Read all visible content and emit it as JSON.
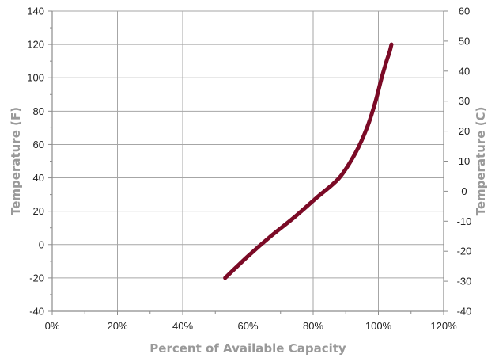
{
  "chart_data": {
    "type": "line",
    "xlabel": "Percent of Available Capacity",
    "ylabel": "Temperature (F)",
    "y2label": "Temperature (C)",
    "xlim": [
      0,
      120
    ],
    "ylim": [
      -40,
      140
    ],
    "y2lim": [
      -40,
      60
    ],
    "x_ticks": [
      0,
      20,
      40,
      60,
      80,
      100,
      120
    ],
    "x_tick_labels": [
      "0%",
      "20%",
      "40%",
      "60%",
      "80%",
      "100%",
      "120%"
    ],
    "y_ticks": [
      -40,
      -20,
      0,
      20,
      40,
      60,
      80,
      100,
      120,
      140
    ],
    "y_tick_labels": [
      "-40",
      "-20",
      "0",
      "20",
      "40",
      "60",
      "80",
      "100",
      "120",
      "140"
    ],
    "y2_ticks": [
      -40,
      -30,
      -20,
      -10,
      0,
      10,
      20,
      30,
      40,
      50,
      60
    ],
    "y2_tick_labels": [
      "-40",
      "-30",
      "-20",
      "-10",
      "0",
      "10",
      "20",
      "30",
      "40",
      "50",
      "60"
    ],
    "grid": true,
    "line_color": "#7b0a26",
    "series": [
      {
        "x": [
          53,
          60,
          67,
          74,
          81,
          88,
          93,
          96.5,
          99,
          101,
          102.5,
          103.5,
          104
        ],
        "y": [
          -20,
          -7,
          5,
          16,
          28,
          40,
          55,
          70,
          85,
          100,
          110,
          116,
          120
        ]
      }
    ]
  }
}
